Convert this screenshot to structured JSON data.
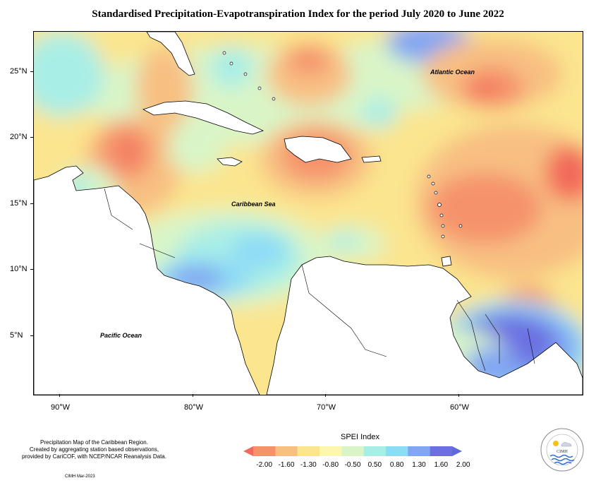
{
  "title": "Standardised Precipitation-Evapotranspiration Index for the period July 2020 to June 2022",
  "map": {
    "lat_labels": [
      "25°N",
      "20°N",
      "15°N",
      "10°N",
      "5°N"
    ],
    "lon_labels": [
      "90°W",
      "80°W",
      "70°W",
      "60°W"
    ],
    "place_labels": {
      "atlantic": "Atlantic Ocean",
      "caribbean": "Caribbean Sea",
      "pacific": "Pacific Ocean"
    }
  },
  "legend": {
    "title": "SPEI Index",
    "values": [
      "-2.00",
      "-1.60",
      "-1.30",
      "-0.80",
      "-0.50",
      "0.50",
      "0.80",
      "1.30",
      "1.60",
      "2.00"
    ],
    "colors": [
      "#f26a5a",
      "#f5926c",
      "#f8bf82",
      "#fbe58f",
      "#fdf6b0",
      "#d9f5c7",
      "#a9eee6",
      "#8ddcf6",
      "#82a6f2",
      "#6b6fe1",
      "#5d6ad8"
    ]
  },
  "notes": {
    "line1": "Precipitation Map of the Caribbean Region.",
    "line2": "Created by aggregating station based observations,",
    "line3": "provided by CariCOF, with NCEP/NCAR Reanalysis Data.",
    "credit": "CIMH Mar-2023"
  },
  "logo_text": "CIMH"
}
